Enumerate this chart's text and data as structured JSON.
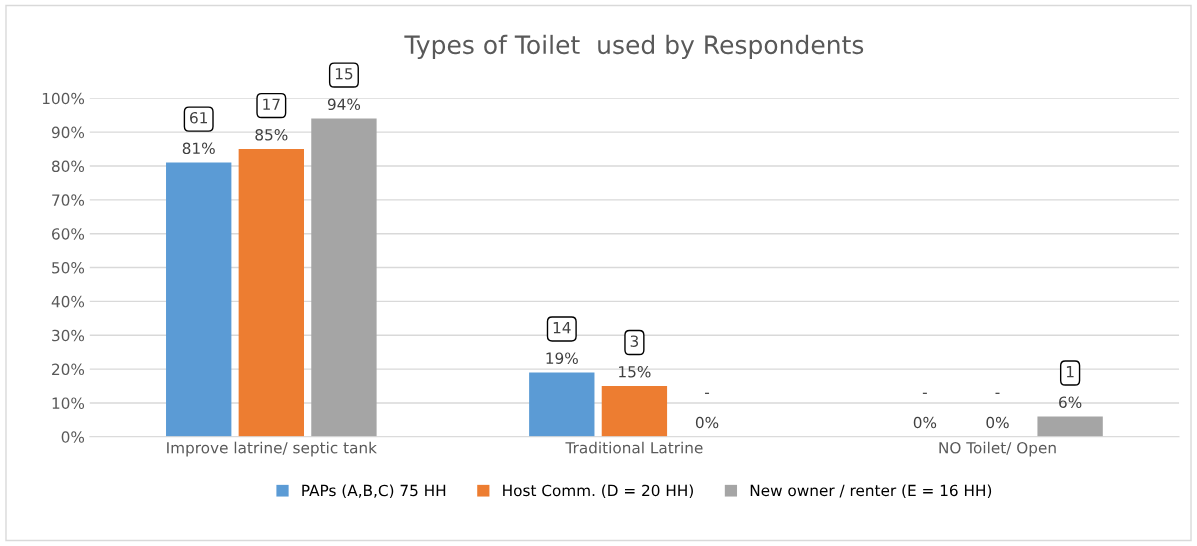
{
  "chart_data": {
    "type": "bar",
    "title": "Types of Toilet  used by Respondents",
    "categories": [
      "Improve latrine/ septic tank",
      "Traditional Latrine",
      "NO Toilet/ Open"
    ],
    "series": [
      {
        "name": "PAPs (A,B,C) 75 HH",
        "color": "#5b9bd5",
        "values": [
          81,
          19,
          0
        ],
        "value_labels": [
          "61\n81%",
          "14\n19%",
          "-\n0%"
        ]
      },
      {
        "name": "Host Comm. (D = 20 HH)",
        "color": "#ed7d31",
        "values": [
          85,
          15,
          0
        ],
        "value_labels": [
          "17\n85%",
          "3\n15%",
          "-\n0%"
        ]
      },
      {
        "name": "New owner / renter (E = 16 HH)",
        "color": "#a5a5a5",
        "values": [
          94,
          0,
          6
        ],
        "value_labels": [
          "15\n94%",
          "-\n0%",
          "1\n6%"
        ]
      }
    ],
    "ylim": [
      0,
      100
    ],
    "yticks": [
      {
        "value": 0,
        "label": "0%"
      },
      {
        "value": 10,
        "label": "10%"
      },
      {
        "value": 20,
        "label": "20%"
      },
      {
        "value": 30,
        "label": "30%"
      },
      {
        "value": 40,
        "label": "40%"
      },
      {
        "value": 50,
        "label": "50%"
      },
      {
        "value": 60,
        "label": "60%"
      },
      {
        "value": 70,
        "label": "70%"
      },
      {
        "value": 80,
        "label": "80%"
      },
      {
        "value": 90,
        "label": "90%"
      },
      {
        "value": 100,
        "label": "100%"
      }
    ],
    "grid": "y",
    "legend": "bottom"
  }
}
